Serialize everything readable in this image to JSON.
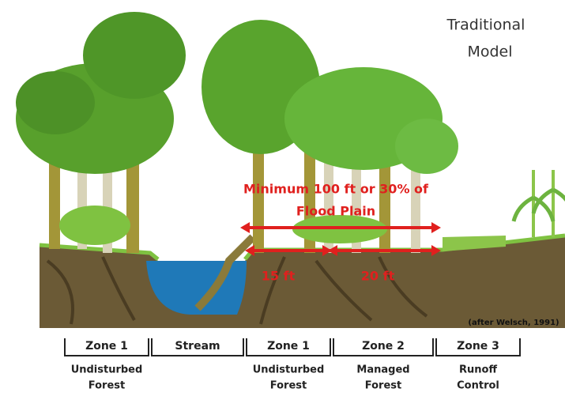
{
  "title": [
    "Traditional",
    "Model"
  ],
  "annotation": {
    "main": [
      "Minimum 100 ft or 30% of",
      "Flood Plain"
    ],
    "left": "15 ft",
    "right": "20 ft"
  },
  "credit": "(after Welsch, 1991)",
  "zones": [
    {
      "label": "Zone 1",
      "description": [
        "Undisturbed",
        "Forest"
      ]
    },
    {
      "label": "Stream",
      "description": []
    },
    {
      "label": "Zone 1",
      "description": [
        "Undisturbed",
        "Forest"
      ]
    },
    {
      "label": "Zone 2",
      "description": [
        "Managed",
        "Forest"
      ]
    },
    {
      "label": "Zone 3",
      "description": [
        "Runoff",
        "Control"
      ]
    }
  ]
}
